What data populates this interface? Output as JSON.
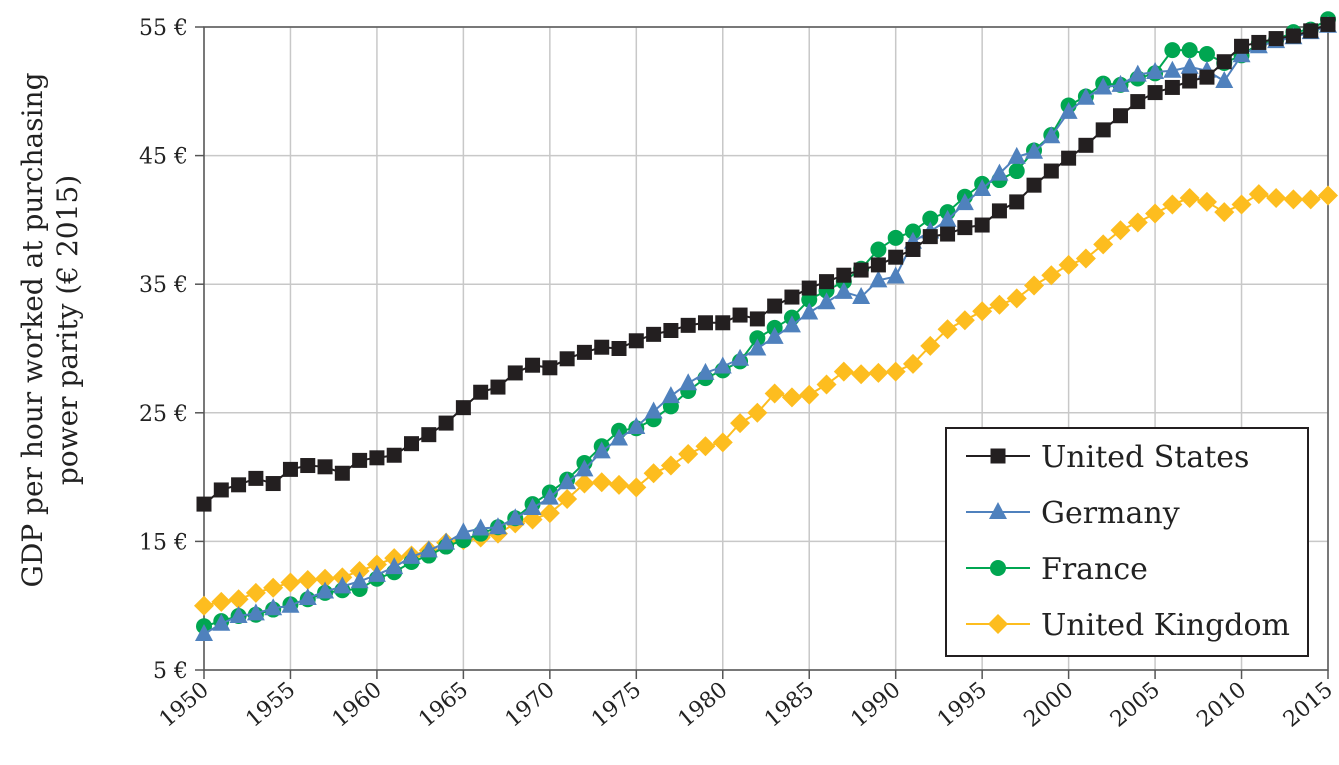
{
  "chart_data": {
    "type": "line",
    "ylabel_line1": "GDP per hour worked at purchasing",
    "ylabel_line2": "power parity (€ 2015)",
    "xlim": [
      1950,
      2015
    ],
    "ylim": [
      5,
      55
    ],
    "x_ticks": [
      "1950",
      "1955",
      "1960",
      "1965",
      "1970",
      "1975",
      "1980",
      "1985",
      "1990",
      "1995",
      "2000",
      "2005",
      "2010",
      "2015"
    ],
    "y_ticks": [
      "5 €",
      "15 €",
      "25 €",
      "35 €",
      "45 €",
      "55 €"
    ],
    "grid": true,
    "legend_position": "bottom-right",
    "series": [
      {
        "name": "United States",
        "color": "#231f20",
        "marker": "square",
        "x": [
          1950,
          1951,
          1952,
          1953,
          1954,
          1955,
          1956,
          1957,
          1958,
          1959,
          1960,
          1961,
          1962,
          1963,
          1964,
          1965,
          1966,
          1967,
          1968,
          1969,
          1970,
          1971,
          1972,
          1973,
          1974,
          1975,
          1976,
          1977,
          1978,
          1979,
          1980,
          1981,
          1982,
          1983,
          1984,
          1985,
          1986,
          1987,
          1988,
          1989,
          1990,
          1991,
          1992,
          1993,
          1994,
          1995,
          1996,
          1997,
          1998,
          1999,
          2000,
          2001,
          2002,
          2003,
          2004,
          2005,
          2006,
          2007,
          2008,
          2009,
          2010,
          2011,
          2012,
          2013,
          2014,
          2015
        ],
        "values": [
          17.9,
          19.0,
          19.4,
          19.9,
          19.5,
          20.6,
          20.9,
          20.8,
          20.3,
          21.3,
          21.5,
          21.7,
          22.6,
          23.3,
          24.2,
          25.4,
          26.6,
          27.0,
          28.1,
          28.7,
          28.5,
          29.2,
          29.7,
          30.1,
          30.0,
          30.6,
          31.1,
          31.4,
          31.8,
          32.0,
          32.0,
          32.6,
          32.3,
          33.3,
          34.0,
          34.7,
          35.2,
          35.7,
          36.1,
          36.5,
          37.1,
          37.7,
          38.7,
          38.9,
          39.4,
          39.6,
          40.7,
          41.4,
          42.7,
          43.8,
          44.8,
          45.8,
          47.0,
          48.1,
          49.2,
          49.9,
          50.3,
          50.8,
          51.1,
          52.3,
          53.5,
          53.8,
          54.1,
          54.3,
          54.7,
          55.2
        ]
      },
      {
        "name": "Germany",
        "color": "#4f81bd",
        "marker": "triangle",
        "x": [
          1950,
          1951,
          1952,
          1953,
          1954,
          1955,
          1956,
          1957,
          1958,
          1959,
          1960,
          1961,
          1962,
          1963,
          1964,
          1965,
          1966,
          1967,
          1968,
          1969,
          1970,
          1971,
          1972,
          1973,
          1974,
          1975,
          1976,
          1977,
          1978,
          1979,
          1980,
          1981,
          1982,
          1983,
          1984,
          1985,
          1986,
          1987,
          1988,
          1989,
          1990,
          1991,
          1992,
          1993,
          1994,
          1995,
          1996,
          1997,
          1998,
          1999,
          2000,
          2001,
          2002,
          2003,
          2004,
          2005,
          2006,
          2007,
          2008,
          2009,
          2010,
          2011,
          2012,
          2013,
          2014,
          2015
        ],
        "values": [
          7.8,
          8.6,
          9.2,
          9.4,
          9.8,
          10.0,
          10.6,
          11.1,
          11.5,
          11.9,
          12.4,
          13.0,
          13.8,
          14.3,
          14.9,
          15.7,
          16.0,
          16.1,
          16.8,
          17.6,
          18.4,
          19.6,
          20.6,
          22.0,
          23.0,
          23.9,
          25.1,
          26.3,
          27.3,
          28.1,
          28.6,
          29.2,
          30.0,
          30.9,
          31.8,
          32.8,
          33.6,
          34.4,
          34.0,
          35.3,
          35.6,
          38.3,
          39.1,
          40.0,
          41.3,
          42.4,
          43.6,
          44.9,
          45.3,
          46.5,
          48.4,
          49.5,
          50.3,
          50.5,
          51.3,
          51.5,
          51.6,
          51.9,
          51.6,
          50.8,
          52.8,
          53.5,
          53.9,
          54.2,
          54.6,
          55.1
        ]
      },
      {
        "name": "France",
        "color": "#00a651",
        "marker": "circle",
        "x": [
          1950,
          1951,
          1952,
          1953,
          1954,
          1955,
          1956,
          1957,
          1958,
          1959,
          1960,
          1961,
          1962,
          1963,
          1964,
          1965,
          1966,
          1967,
          1968,
          1969,
          1970,
          1971,
          1972,
          1973,
          1974,
          1975,
          1976,
          1977,
          1978,
          1979,
          1980,
          1981,
          1982,
          1983,
          1984,
          1985,
          1986,
          1987,
          1988,
          1989,
          1990,
          1991,
          1992,
          1993,
          1994,
          1995,
          1996,
          1997,
          1998,
          1999,
          2000,
          2001,
          2002,
          2003,
          2004,
          2005,
          2006,
          2007,
          2008,
          2009,
          2010,
          2011,
          2012,
          2013,
          2014,
          2015
        ],
        "values": [
          8.4,
          8.8,
          9.2,
          9.3,
          9.7,
          10.1,
          10.5,
          11.0,
          11.2,
          11.3,
          12.1,
          12.6,
          13.4,
          13.9,
          14.6,
          15.1,
          15.6,
          16.1,
          16.8,
          17.9,
          18.8,
          19.8,
          21.1,
          22.4,
          23.6,
          23.8,
          24.5,
          25.5,
          26.7,
          27.7,
          28.3,
          29.0,
          30.8,
          31.6,
          32.4,
          33.8,
          34.5,
          35.2,
          36.2,
          37.7,
          38.6,
          39.1,
          40.1,
          40.6,
          41.8,
          42.8,
          43.1,
          43.8,
          45.4,
          46.6,
          48.9,
          49.6,
          50.6,
          50.5,
          51.0,
          51.4,
          53.2,
          53.2,
          52.9,
          52.2,
          52.8,
          53.7,
          54.0,
          54.6,
          54.8,
          55.6
        ]
      },
      {
        "name": "United Kingdom",
        "color": "#fdbd1f",
        "marker": "diamond",
        "x": [
          1950,
          1951,
          1952,
          1953,
          1954,
          1955,
          1956,
          1957,
          1958,
          1959,
          1960,
          1961,
          1962,
          1963,
          1964,
          1965,
          1966,
          1967,
          1968,
          1969,
          1970,
          1971,
          1972,
          1973,
          1974,
          1975,
          1976,
          1977,
          1978,
          1979,
          1980,
          1981,
          1982,
          1983,
          1984,
          1985,
          1986,
          1987,
          1988,
          1989,
          1990,
          1991,
          1992,
          1993,
          1994,
          1995,
          1996,
          1997,
          1998,
          1999,
          2000,
          2001,
          2002,
          2003,
          2004,
          2005,
          2006,
          2007,
          2008,
          2009,
          2010,
          2011,
          2012,
          2013,
          2014,
          2015
        ],
        "values": [
          10.0,
          10.3,
          10.5,
          11.0,
          11.4,
          11.8,
          12.0,
          12.1,
          12.2,
          12.7,
          13.2,
          13.7,
          13.9,
          14.3,
          14.9,
          15.1,
          15.3,
          15.6,
          16.4,
          16.7,
          17.2,
          18.3,
          19.5,
          19.6,
          19.4,
          19.2,
          20.3,
          20.9,
          21.8,
          22.4,
          22.7,
          24.2,
          25.0,
          26.5,
          26.2,
          26.4,
          27.2,
          28.2,
          28.0,
          28.1,
          28.2,
          28.8,
          30.2,
          31.5,
          32.2,
          32.9,
          33.4,
          33.9,
          34.9,
          35.7,
          36.5,
          37.0,
          38.1,
          39.2,
          39.8,
          40.5,
          41.2,
          41.7,
          41.4,
          40.6,
          41.2,
          42.0,
          41.7,
          41.6,
          41.6,
          41.9
        ]
      }
    ]
  }
}
